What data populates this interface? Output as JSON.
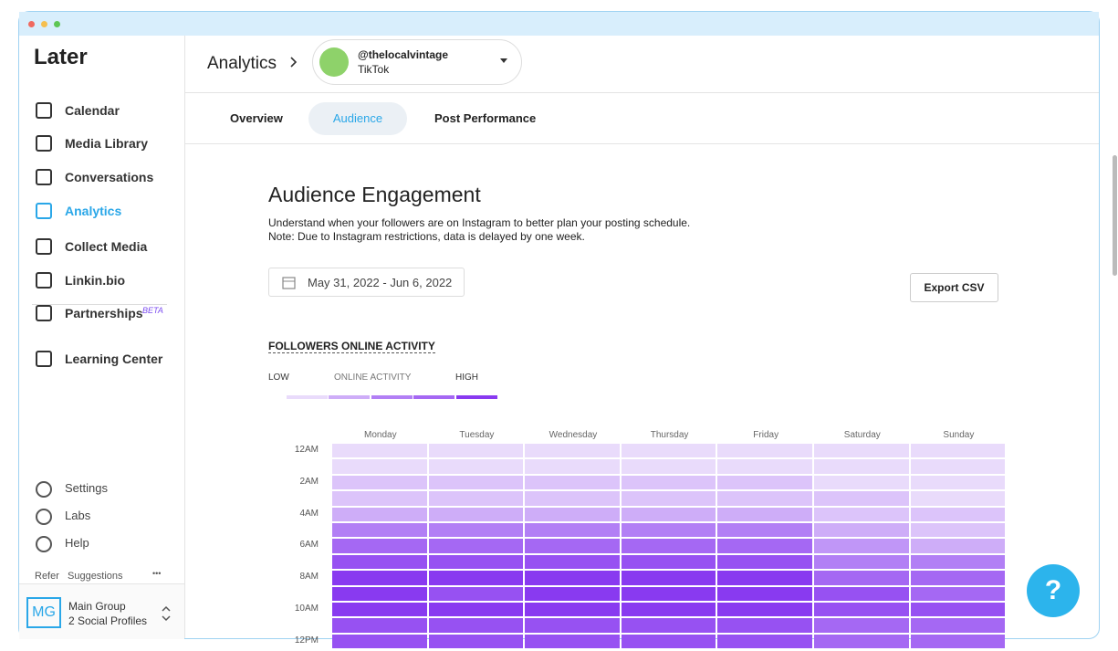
{
  "sidebar": {
    "logo": "Later",
    "nav": [
      "Calendar",
      "Media Library",
      "Conversations",
      "Analytics",
      "Collect Media",
      "Linkin.bio",
      "Partnerships",
      "Learning Center"
    ],
    "active_nav": 3,
    "beta": "BETA",
    "bottom": [
      "Settings",
      "Labs",
      "Help"
    ],
    "refer": "Refer",
    "suggestions": "Suggestions",
    "more": "•••",
    "group": {
      "initials": "MG",
      "name": "Main Group",
      "profiles": "2 Social Profiles"
    }
  },
  "header": {
    "title": "Analytics",
    "account": "@thelocalvintage",
    "platform": "TikTok"
  },
  "tabs": [
    "Overview",
    "Audience",
    "Post Performance"
  ],
  "active_tab": 1,
  "content": {
    "heading": "Audience Engagement",
    "description": [
      "Understand when your followers are on Instagram to better plan your posting schedule.",
      "Note: Due to Instagram restrictions, data is delayed by one week."
    ],
    "date_range": "May 31, 2022 - Jun 6, 2022",
    "export": "Export CSV",
    "section": "FOLLOWERS ONLINE ACTIVITY",
    "legend": {
      "low": "LOW",
      "middle": "ONLINE ACTIVITY",
      "high": "HIGH"
    },
    "heatmap": {
      "days": [
        "Monday",
        "Tuesday",
        "Wednesday",
        "Thursday",
        "Friday",
        "Saturday",
        "Sunday"
      ],
      "hours": [
        "12AM",
        null,
        "2AM",
        null,
        "4AM",
        null,
        "6AM",
        null,
        "8AM",
        null,
        "10AM",
        null,
        "12PM"
      ],
      "levels": [
        [
          1,
          1,
          1,
          1,
          1,
          1,
          1
        ],
        [
          1,
          1,
          1,
          1,
          1,
          1,
          1
        ],
        [
          2,
          2,
          2,
          2,
          2,
          1,
          1
        ],
        [
          2,
          2,
          2,
          2,
          2,
          2,
          1
        ],
        [
          3,
          3,
          3,
          3,
          3,
          2,
          2
        ],
        [
          5,
          5,
          5,
          5,
          5,
          3,
          2
        ],
        [
          6,
          6,
          6,
          6,
          6,
          4,
          3
        ],
        [
          7,
          7,
          7,
          7,
          7,
          5,
          5
        ],
        [
          8,
          8,
          8,
          8,
          8,
          6,
          6
        ],
        [
          8,
          7,
          8,
          8,
          8,
          7,
          6
        ],
        [
          8,
          8,
          8,
          8,
          8,
          7,
          7
        ],
        [
          7,
          7,
          7,
          7,
          7,
          6,
          6
        ],
        [
          7,
          7,
          7,
          7,
          7,
          6,
          6
        ]
      ]
    }
  },
  "help_button": "?"
}
